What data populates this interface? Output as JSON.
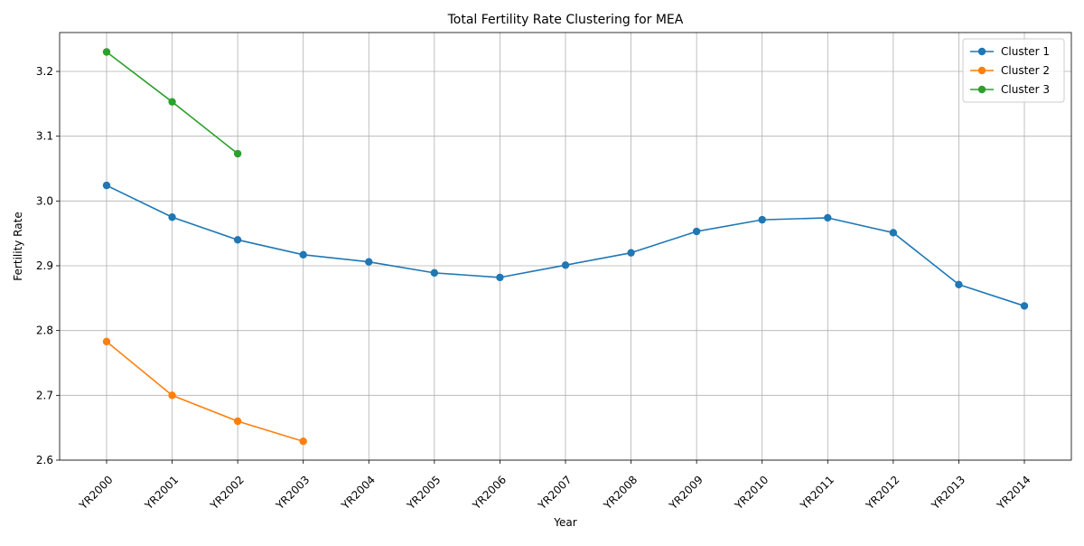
{
  "chart_data": {
    "type": "line",
    "title": "Total Fertility Rate Clustering for MEA",
    "xlabel": "Year",
    "ylabel": "Fertility Rate",
    "categories": [
      "YR2000",
      "YR2001",
      "YR2002",
      "YR2003",
      "YR2004",
      "YR2005",
      "YR2006",
      "YR2007",
      "YR2008",
      "YR2009",
      "YR2010",
      "YR2011",
      "YR2012",
      "YR2013",
      "YR2014"
    ],
    "ylim": [
      2.6,
      3.26
    ],
    "yticks": [
      2.6,
      2.7,
      2.8,
      2.9,
      3.0,
      3.1,
      3.2
    ],
    "ytick_labels": [
      "2.6",
      "2.7",
      "2.8",
      "2.9",
      "3.0",
      "3.1",
      "3.2"
    ],
    "grid": true,
    "legend_position": "top-right",
    "series": [
      {
        "name": "Cluster 1",
        "color": "#1f77b4",
        "values": [
          3.024,
          2.975,
          2.94,
          2.917,
          2.906,
          2.889,
          2.882,
          2.901,
          2.92,
          2.953,
          2.971,
          2.974,
          2.951,
          2.871,
          2.838
        ]
      },
      {
        "name": "Cluster 2",
        "color": "#ff7f0e",
        "values": [
          2.783,
          2.7,
          2.66,
          2.629,
          null,
          null,
          null,
          null,
          null,
          null,
          null,
          null,
          null,
          null,
          null
        ]
      },
      {
        "name": "Cluster 3",
        "color": "#2ca02c",
        "values": [
          3.23,
          3.153,
          3.073,
          null,
          null,
          null,
          null,
          null,
          null,
          null,
          null,
          null,
          null,
          null,
          null
        ]
      }
    ]
  }
}
